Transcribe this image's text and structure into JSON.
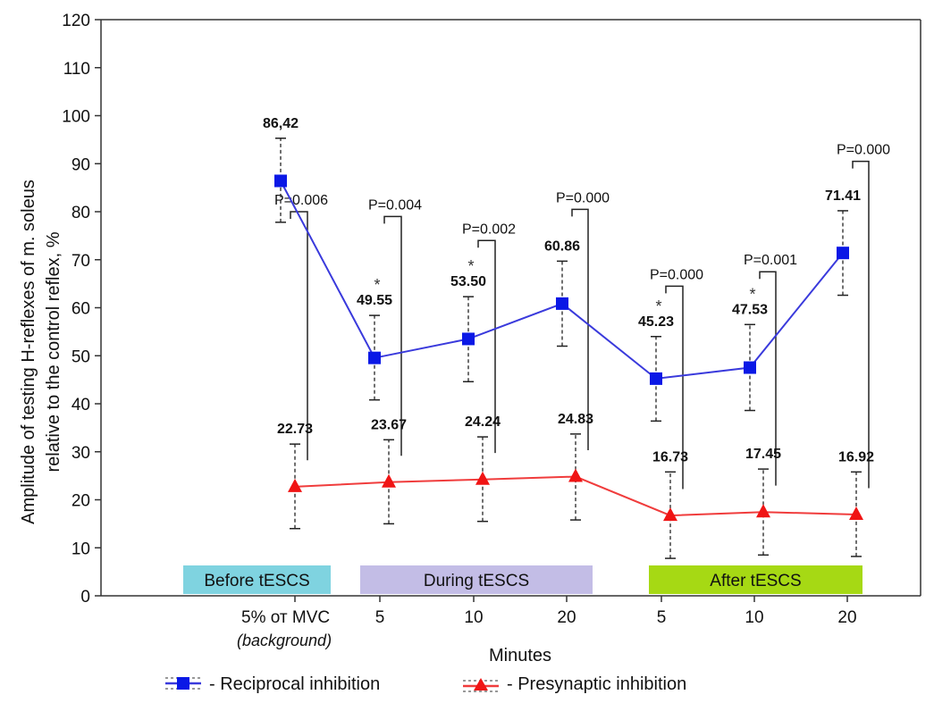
{
  "chart_data": {
    "type": "line",
    "xlabel": "Minutes",
    "ylabel_lines": [
      "Amplitude of testing H-reflexes of m. soleus",
      "relative to the control reflex, %"
    ],
    "ylim": [
      0,
      120
    ],
    "yticks": [
      0,
      10,
      20,
      30,
      40,
      50,
      60,
      70,
      80,
      90,
      100,
      110,
      120
    ],
    "categories": [
      "5% от MVC",
      "5",
      "10",
      "20",
      "5",
      "10",
      "20"
    ],
    "category_sub": [
      "(background)",
      "",
      "",
      "",
      "",
      "",
      ""
    ],
    "series": [
      {
        "name": "- Reciprocal inhibition",
        "color": "#3a3adc",
        "marker_color": "#0a18e6",
        "marker": "square",
        "values": [
          86.42,
          49.55,
          53.5,
          60.86,
          45.23,
          47.53,
          71.41
        ],
        "labels": [
          "86,42",
          "49.55",
          "53.50",
          "60.86",
          "45.23",
          "47.53",
          "71.41"
        ],
        "err_low": [
          77.8,
          40.8,
          44.6,
          52.0,
          36.4,
          38.6,
          62.6
        ],
        "err_high": [
          95.3,
          58.4,
          62.3,
          69.7,
          54.0,
          56.5,
          80.2
        ],
        "significance": [
          "",
          "*",
          "*",
          "",
          "*",
          "*",
          ""
        ]
      },
      {
        "name": "- Presynaptic inhibition",
        "color": "#f03c3c",
        "marker_color": "#f01414",
        "marker": "triangle",
        "values": [
          22.73,
          23.67,
          24.24,
          24.83,
          16.73,
          17.45,
          16.92
        ],
        "labels": [
          "22.73",
          "23.67",
          "24.24",
          "24.83",
          "16.73",
          "17.45",
          "16.92"
        ],
        "err_low": [
          14.0,
          15.0,
          15.5,
          15.8,
          7.8,
          8.5,
          8.2
        ],
        "err_high": [
          31.6,
          32.5,
          33.1,
          33.7,
          25.8,
          26.4,
          25.8
        ]
      }
    ],
    "pvalues": [
      "P=0.006",
      "P=0.004",
      "P=0.002",
      "P=0.000",
      "P=0.000",
      "P=0.001",
      "P=0.000"
    ],
    "phases": [
      {
        "label": "Before tESCS",
        "color": "#7fd3e0"
      },
      {
        "label": "During tESCS",
        "color": "#c3bde6"
      },
      {
        "label": "After tESCS",
        "color": "#a6d914"
      }
    ]
  }
}
